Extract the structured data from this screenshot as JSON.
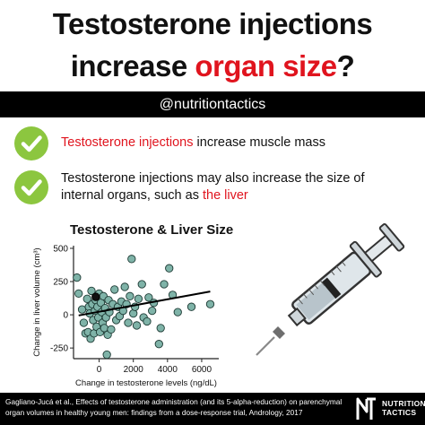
{
  "title": {
    "line1": "Testosterone injections",
    "line2_prefix": "increase ",
    "line2_accent": "organ size",
    "line2_suffix": "?"
  },
  "handle": "@nutritiontactics",
  "points": [
    {
      "accent": "Testosterone injections",
      "text": " increase muscle mass",
      "icon": "check-circle-icon"
    },
    {
      "text": "Testosterone injections may also increase the size of internal organs, such as ",
      "accent": "the liver",
      "icon": "check-circle-icon"
    }
  ],
  "colors": {
    "accent_red": "#e0141e",
    "check_green": "#8cc63f",
    "point_fill": "#7fb3a8",
    "highlight_point": "#111111",
    "bar": "#000000"
  },
  "chart_data": {
    "type": "scatter",
    "title": "Testosterone & Liver Size",
    "xlabel": "Change in testosterone levels (ng/dL)",
    "ylabel": "Change in liver volume (cm³)",
    "xlim": [
      -1500,
      7000
    ],
    "ylim": [
      -330,
      520
    ],
    "xticks": [
      0,
      2000,
      4000,
      6000
    ],
    "xtick_labels": [
      "0",
      "2000",
      "4000",
      "6000"
    ],
    "yticks": [
      -250,
      0,
      250,
      500
    ],
    "ytick_labels": [
      "-250",
      "0",
      "250",
      "500"
    ],
    "grid": false,
    "trendline": {
      "x": [
        -1200,
        6500
      ],
      "y": [
        -5,
        175
      ]
    },
    "highlight": {
      "x": -200,
      "y": 135
    },
    "points": [
      {
        "x": -1300,
        "y": 280
      },
      {
        "x": -1200,
        "y": 160
      },
      {
        "x": -1000,
        "y": 40
      },
      {
        "x": -900,
        "y": -60
      },
      {
        "x": -800,
        "y": -140
      },
      {
        "x": -700,
        "y": 120
      },
      {
        "x": -650,
        "y": -130
      },
      {
        "x": -600,
        "y": 60
      },
      {
        "x": -550,
        "y": 10
      },
      {
        "x": -500,
        "y": -180
      },
      {
        "x": -450,
        "y": 180
      },
      {
        "x": -400,
        "y": 80
      },
      {
        "x": -350,
        "y": -40
      },
      {
        "x": -300,
        "y": -140
      },
      {
        "x": -250,
        "y": 30
      },
      {
        "x": -200,
        "y": 110
      },
      {
        "x": -150,
        "y": -90
      },
      {
        "x": -100,
        "y": 60
      },
      {
        "x": -50,
        "y": -20
      },
      {
        "x": 0,
        "y": 160
      },
      {
        "x": 50,
        "y": -130
      },
      {
        "x": 100,
        "y": 90
      },
      {
        "x": 150,
        "y": 20
      },
      {
        "x": 200,
        "y": -60
      },
      {
        "x": 250,
        "y": 140
      },
      {
        "x": 300,
        "y": -100
      },
      {
        "x": 350,
        "y": 50
      },
      {
        "x": 400,
        "y": -20
      },
      {
        "x": 450,
        "y": -300
      },
      {
        "x": 500,
        "y": -150
      },
      {
        "x": 550,
        "y": 110
      },
      {
        "x": 600,
        "y": 20
      },
      {
        "x": 700,
        "y": -110
      },
      {
        "x": 800,
        "y": 80
      },
      {
        "x": 900,
        "y": 190
      },
      {
        "x": 1000,
        "y": -40
      },
      {
        "x": 1100,
        "y": 60
      },
      {
        "x": 1200,
        "y": -10
      },
      {
        "x": 1300,
        "y": 100
      },
      {
        "x": 1400,
        "y": 30
      },
      {
        "x": 1500,
        "y": 210
      },
      {
        "x": 1600,
        "y": 80
      },
      {
        "x": 1700,
        "y": -60
      },
      {
        "x": 1800,
        "y": 140
      },
      {
        "x": 1900,
        "y": 420
      },
      {
        "x": 2000,
        "y": 10
      },
      {
        "x": 2100,
        "y": 60
      },
      {
        "x": 2200,
        "y": -80
      },
      {
        "x": 2300,
        "y": 120
      },
      {
        "x": 2500,
        "y": 230
      },
      {
        "x": 2600,
        "y": -20
      },
      {
        "x": 2800,
        "y": -50
      },
      {
        "x": 2900,
        "y": 130
      },
      {
        "x": 3100,
        "y": 30
      },
      {
        "x": 3200,
        "y": 90
      },
      {
        "x": 3500,
        "y": -220
      },
      {
        "x": 3600,
        "y": -100
      },
      {
        "x": 3800,
        "y": 230
      },
      {
        "x": 4100,
        "y": 350
      },
      {
        "x": 4300,
        "y": 150
      },
      {
        "x": 4600,
        "y": 20
      },
      {
        "x": 5400,
        "y": 60
      },
      {
        "x": 6500,
        "y": 80
      }
    ]
  },
  "citation": "Gagliano-Jucá et al., Effects of testosterone administration (and its 5-alpha-reduction) on parenchymal organ volumes in healthy young men: findings from a dose-response trial, Andrology, 2017",
  "logo": {
    "line1": "NUTRITION",
    "line2": "TACTICS",
    "icon": "nt-logo-icon"
  },
  "syringe_icon": "syringe-icon"
}
